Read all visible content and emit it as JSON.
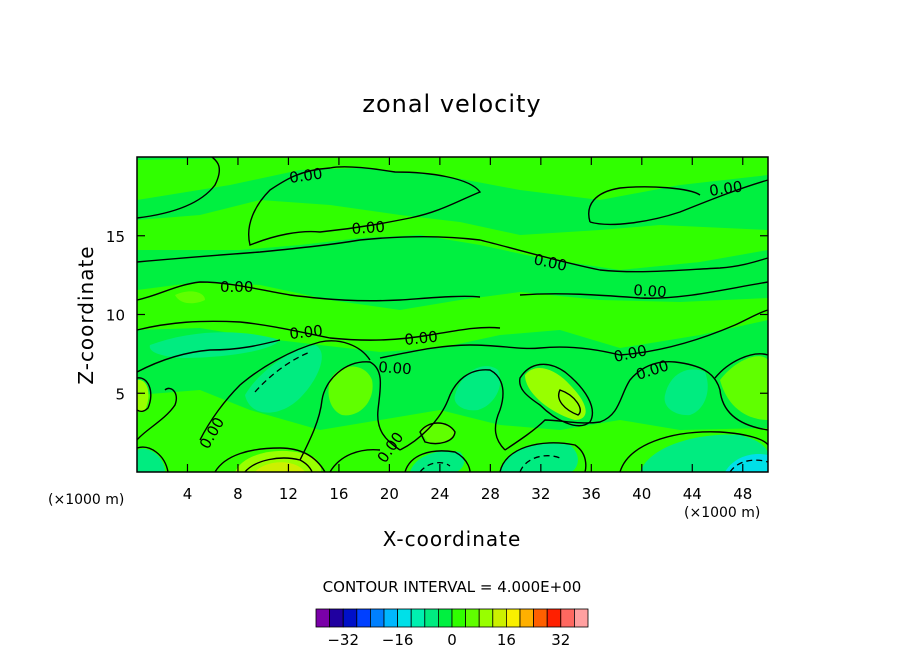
{
  "chart_data": {
    "type": "heatmap",
    "title": "zonal velocity",
    "xlabel": "X-coordinate",
    "ylabel": "Z-coordinate",
    "x_unit_left": "(×1000 m)",
    "x_unit_right": "(×1000 m)",
    "xlim": [
      0,
      50
    ],
    "ylim": [
      0,
      20
    ],
    "xticks": [
      4,
      8,
      12,
      16,
      20,
      24,
      28,
      32,
      36,
      40,
      44,
      48
    ],
    "yticks": [
      5,
      10,
      15
    ],
    "contour_interval_text": "CONTOUR INTERVAL = 4.000E+00",
    "contour_label": "0.00",
    "colorbar": {
      "levels": [
        -36,
        -32,
        -28,
        -24,
        -20,
        -16,
        -12,
        -8,
        -4,
        0,
        4,
        8,
        12,
        16,
        20,
        24,
        28,
        32,
        36
      ],
      "colors": [
        "#7a00a8",
        "#2000a0",
        "#0010c8",
        "#0040ff",
        "#0080ff",
        "#00b8ff",
        "#00e0e8",
        "#00f0b0",
        "#00ec80",
        "#00f040",
        "#30ff00",
        "#60ff00",
        "#98ff00",
        "#ccf000",
        "#f8f000",
        "#ffb000",
        "#ff6000",
        "#ff2000",
        "#ff6860",
        "#ffa0a0"
      ],
      "tick_labels": [
        "−32",
        "−16",
        "0",
        "16",
        "32"
      ],
      "tick_values": [
        -32,
        -16,
        0,
        16,
        32
      ]
    }
  }
}
